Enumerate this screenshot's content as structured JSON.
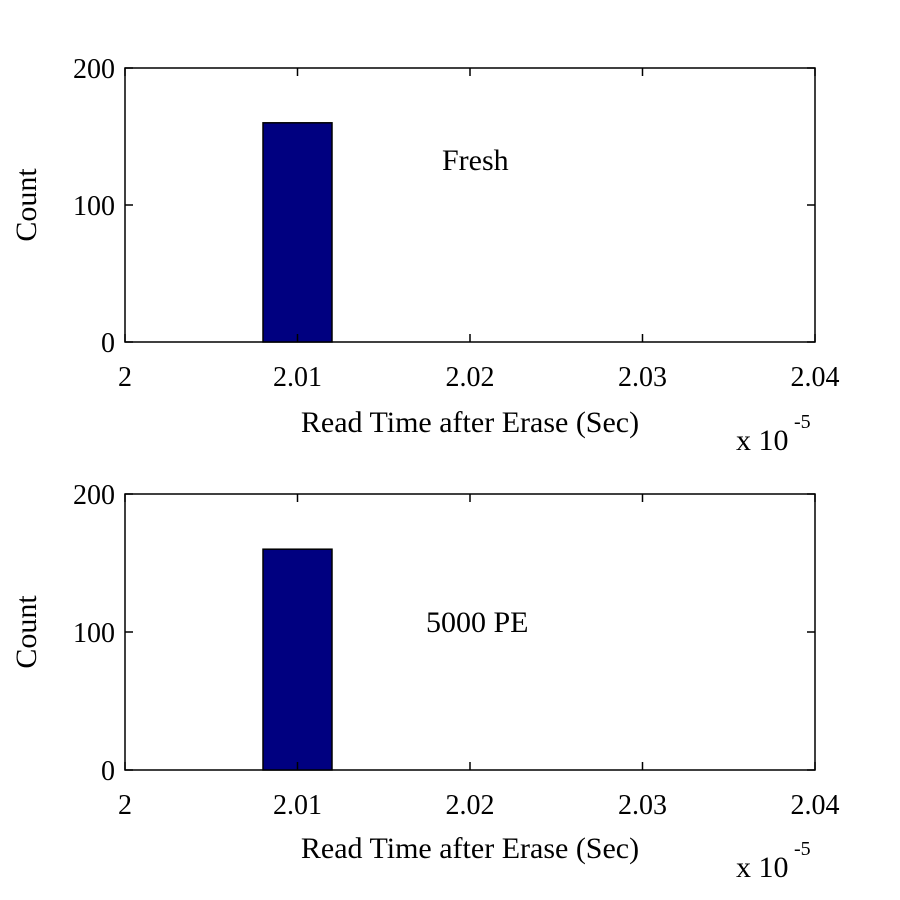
{
  "chart_data": [
    {
      "type": "bar",
      "annotation": "Fresh",
      "xlabel": "Read Time after Erase (Sec)",
      "ylabel": "Count",
      "x_multiplier": {
        "base": "x 10",
        "exponent": "-5"
      },
      "xlim": [
        2.0,
        2.04
      ],
      "ylim": [
        0,
        200
      ],
      "xticks": [
        2.0,
        2.01,
        2.02,
        2.03,
        2.04
      ],
      "xtick_labels": [
        "2",
        "2.01",
        "2.02",
        "2.03",
        "2.04"
      ],
      "yticks": [
        0,
        100,
        200
      ],
      "ytick_labels": [
        "0",
        "100",
        "200"
      ],
      "bars": [
        {
          "x_start": 2.008,
          "x_end": 2.012,
          "value": 160
        }
      ],
      "bar_color": "#000080",
      "grid": false
    },
    {
      "type": "bar",
      "annotation": "5000 PE",
      "xlabel": "Read Time after Erase (Sec)",
      "ylabel": "Count",
      "x_multiplier": {
        "base": "x 10",
        "exponent": "-5"
      },
      "xlim": [
        2.0,
        2.04
      ],
      "ylim": [
        0,
        200
      ],
      "xticks": [
        2.0,
        2.01,
        2.02,
        2.03,
        2.04
      ],
      "xtick_labels": [
        "2",
        "2.01",
        "2.02",
        "2.03",
        "2.04"
      ],
      "yticks": [
        0,
        100,
        200
      ],
      "ytick_labels": [
        "0",
        "100",
        "200"
      ],
      "bars": [
        {
          "x_start": 2.008,
          "x_end": 2.012,
          "value": 160
        }
      ],
      "bar_color": "#000080",
      "grid": false
    }
  ]
}
